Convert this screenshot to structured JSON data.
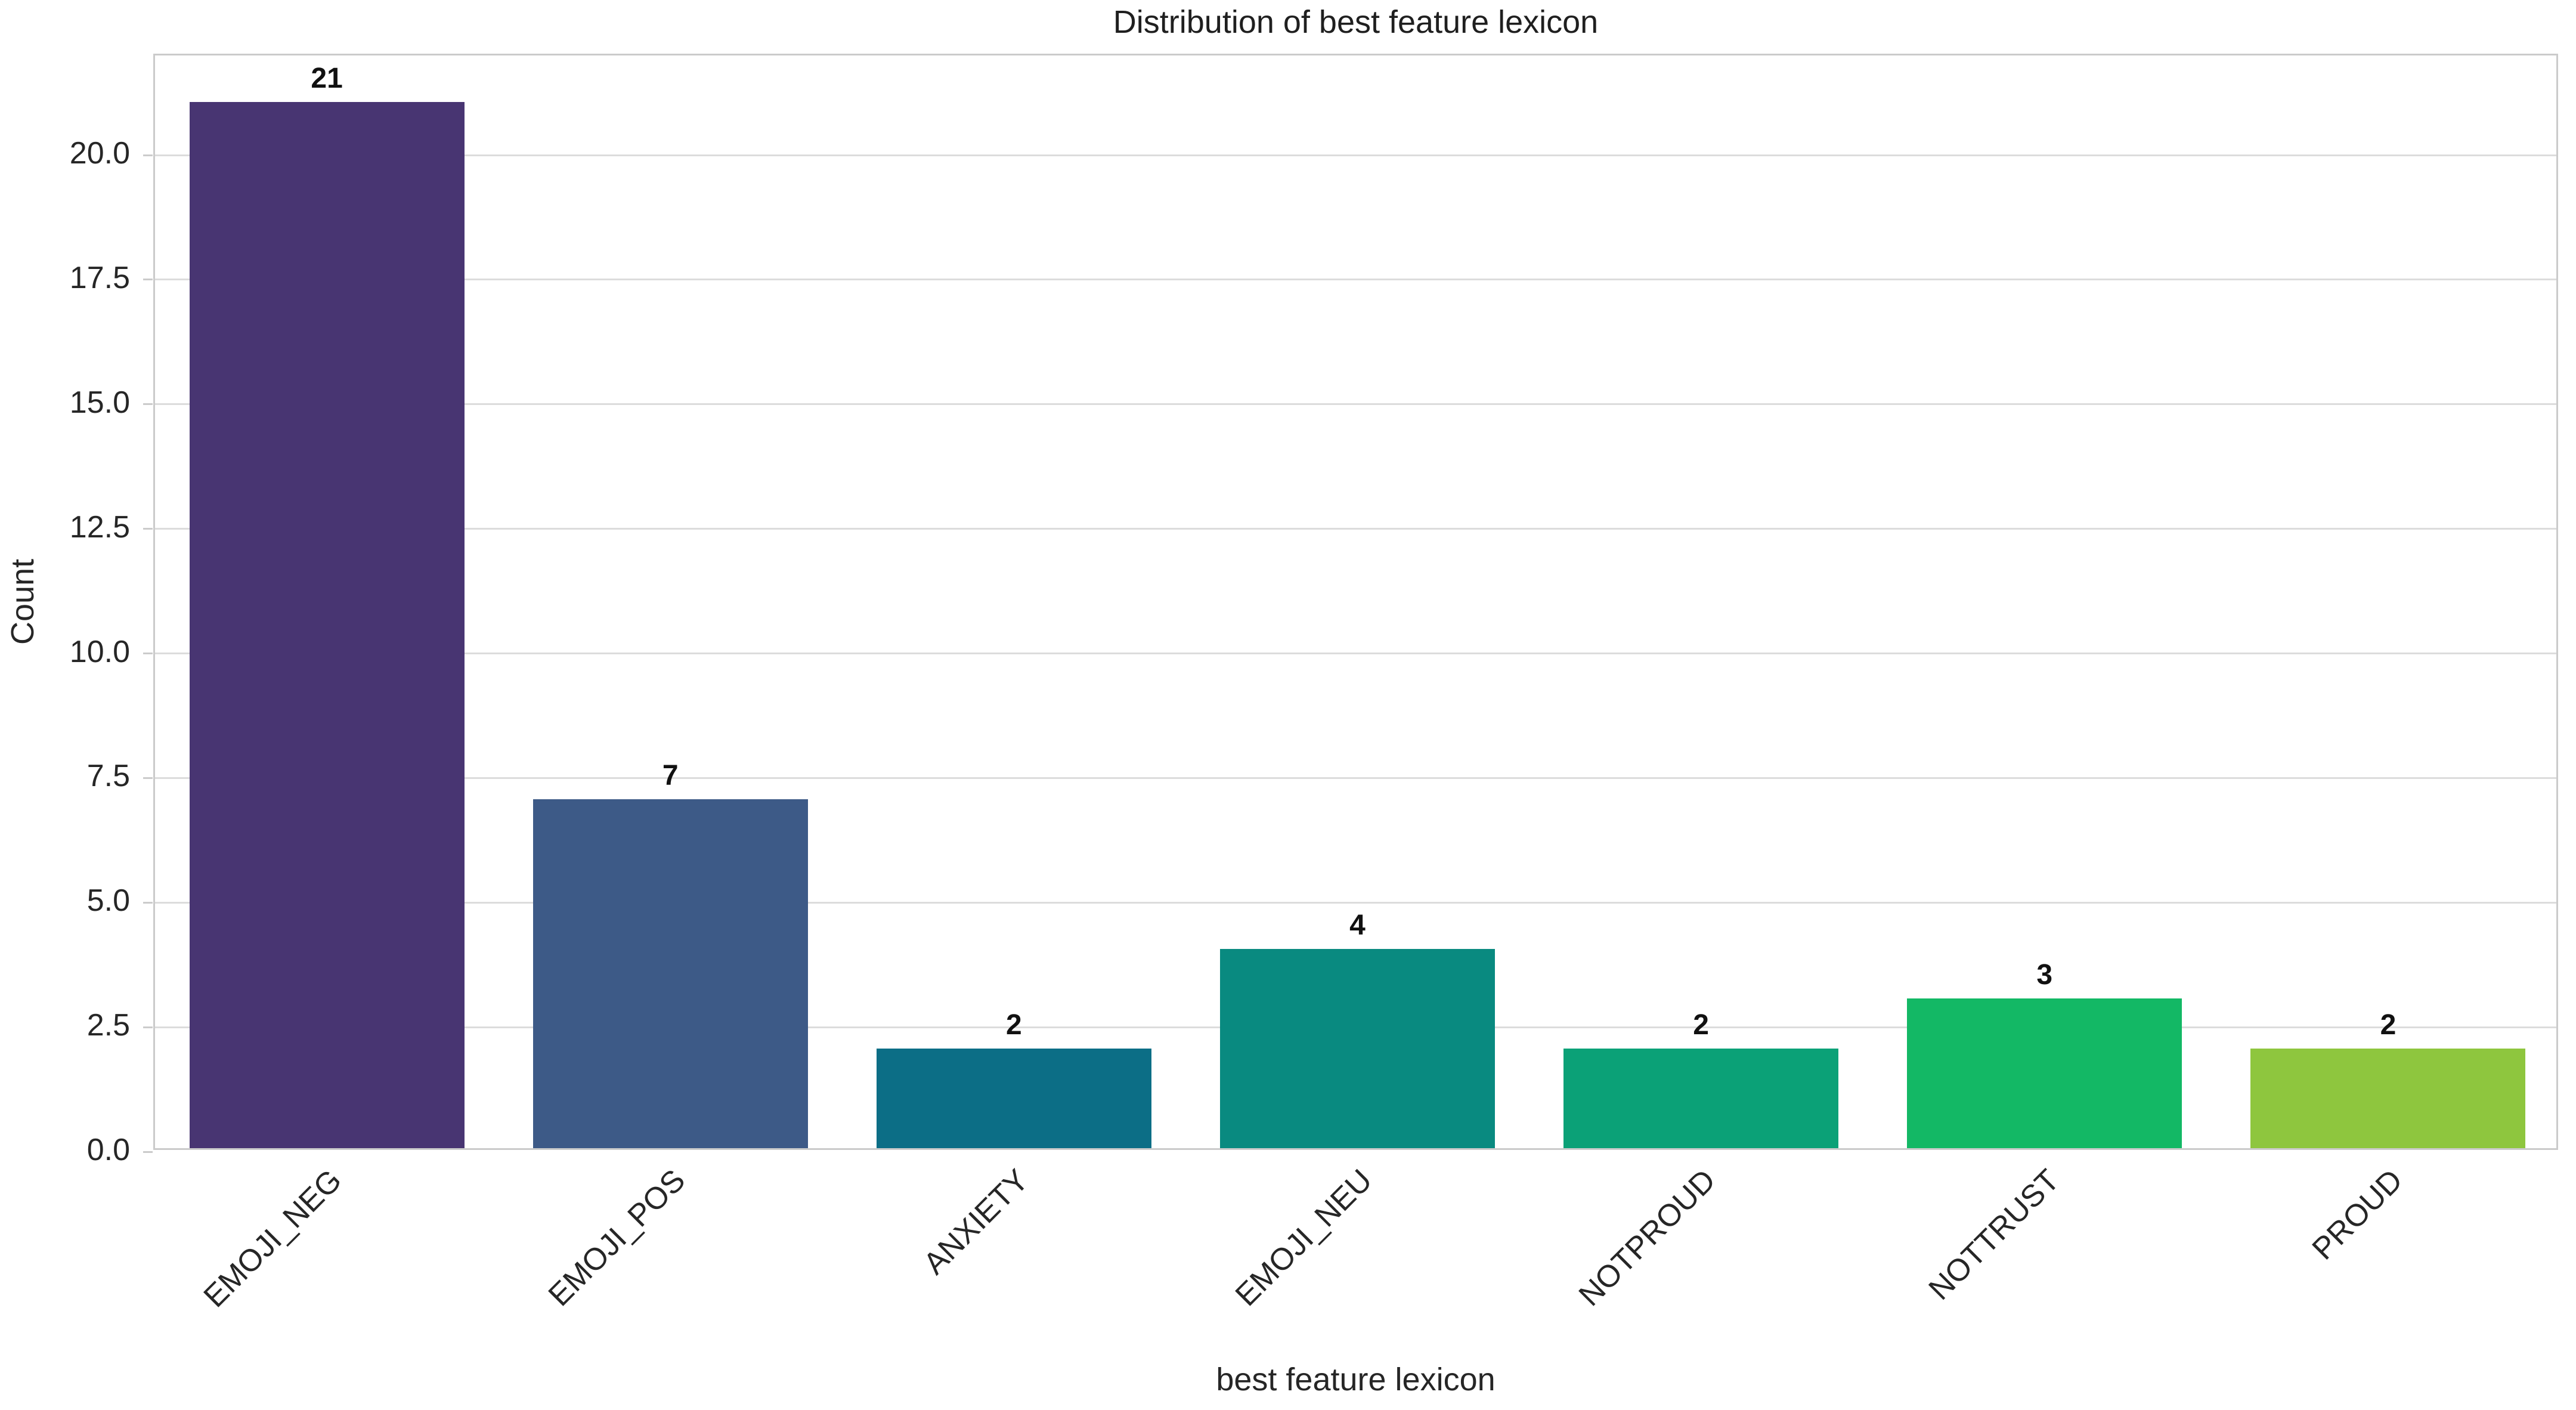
{
  "chart_data": {
    "type": "bar",
    "title": "Distribution of best feature lexicon",
    "xlabel": "best feature lexicon",
    "ylabel": "Count",
    "categories": [
      "EMOJI_NEG",
      "EMOJI_POS",
      "ANXIETY",
      "EMOJI_NEU",
      "NOTPROUD",
      "NOTTRUST",
      "PROUD"
    ],
    "values": [
      21,
      7,
      2,
      4,
      2,
      3,
      2
    ],
    "bar_value_labels": [
      "21",
      "7",
      "2",
      "4",
      "2",
      "3",
      "2"
    ],
    "bar_colors": [
      "#483572",
      "#3d5a87",
      "#0c6e86",
      "#098a80",
      "#0ba177",
      "#13b865",
      "#8ec63e"
    ],
    "yticks": [
      {
        "label": "0.0",
        "value": 0
      },
      {
        "label": "2.5",
        "value": 2.5
      },
      {
        "label": "5.0",
        "value": 5
      },
      {
        "label": "7.5",
        "value": 7.5
      },
      {
        "label": "10.0",
        "value": 10
      },
      {
        "label": "12.5",
        "value": 12.5
      },
      {
        "label": "15.0",
        "value": 15
      },
      {
        "label": "17.5",
        "value": 17.5
      },
      {
        "label": "20.0",
        "value": 20
      }
    ],
    "ylim": [
      0,
      22
    ],
    "x_tick_rotation_deg": 45,
    "grid": "horizontal",
    "legend": "none",
    "style_colors": {
      "grid": "#dcdcdc",
      "frame": "#cbcbcb",
      "text": "#262626"
    }
  }
}
